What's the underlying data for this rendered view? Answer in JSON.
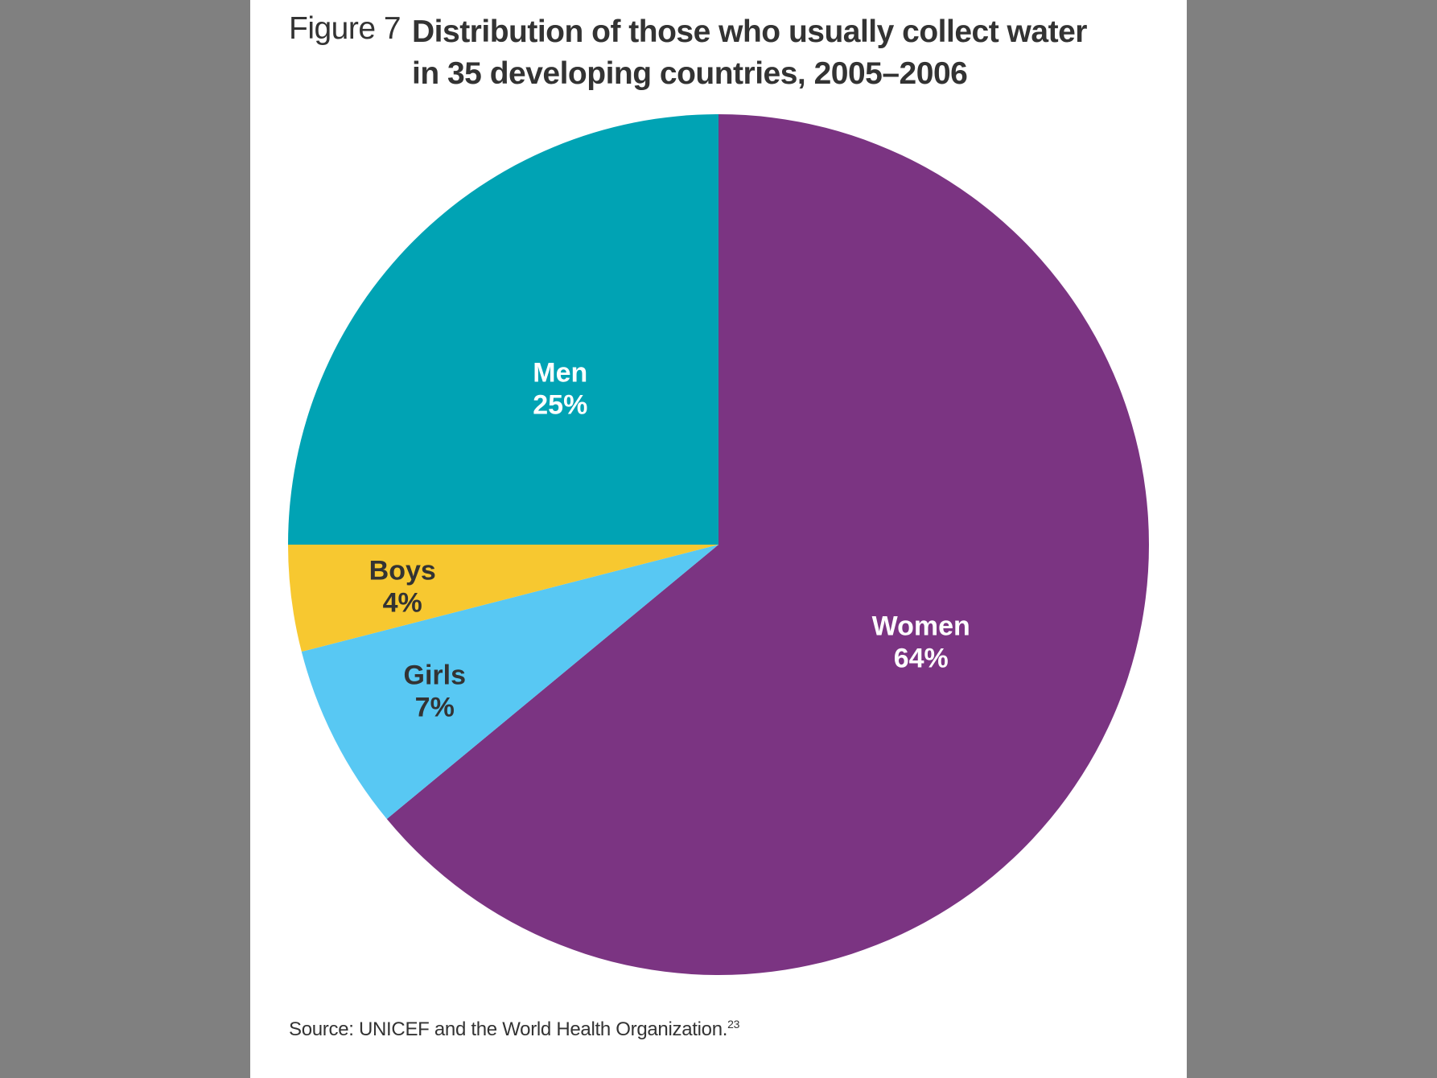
{
  "figure": {
    "label": "Figure 7",
    "title_line1": "Distribution of those who usually collect water",
    "title_line2": "in 35 developing countries, 2005–2006",
    "source_text": "Source: UNICEF and the World Health Organization.",
    "source_ref": "23"
  },
  "chart_data": {
    "type": "pie",
    "title": "Distribution of those who usually collect water in 35 developing countries, 2005–2006",
    "start_angle_deg": 0,
    "direction": "clockwise",
    "slices": [
      {
        "name": "Women",
        "value": 64,
        "value_label": "64%",
        "color": "#7b3482",
        "text_color": "#ffffff"
      },
      {
        "name": "Girls",
        "value": 7,
        "value_label": "7%",
        "color": "#58c8f3",
        "text_color": "#333333"
      },
      {
        "name": "Boys",
        "value": 4,
        "value_label": "4%",
        "color": "#f7c830",
        "text_color": "#333333"
      },
      {
        "name": "Men",
        "value": 25,
        "value_label": "25%",
        "color": "#00a3b4",
        "text_color": "#ffffff"
      }
    ]
  }
}
